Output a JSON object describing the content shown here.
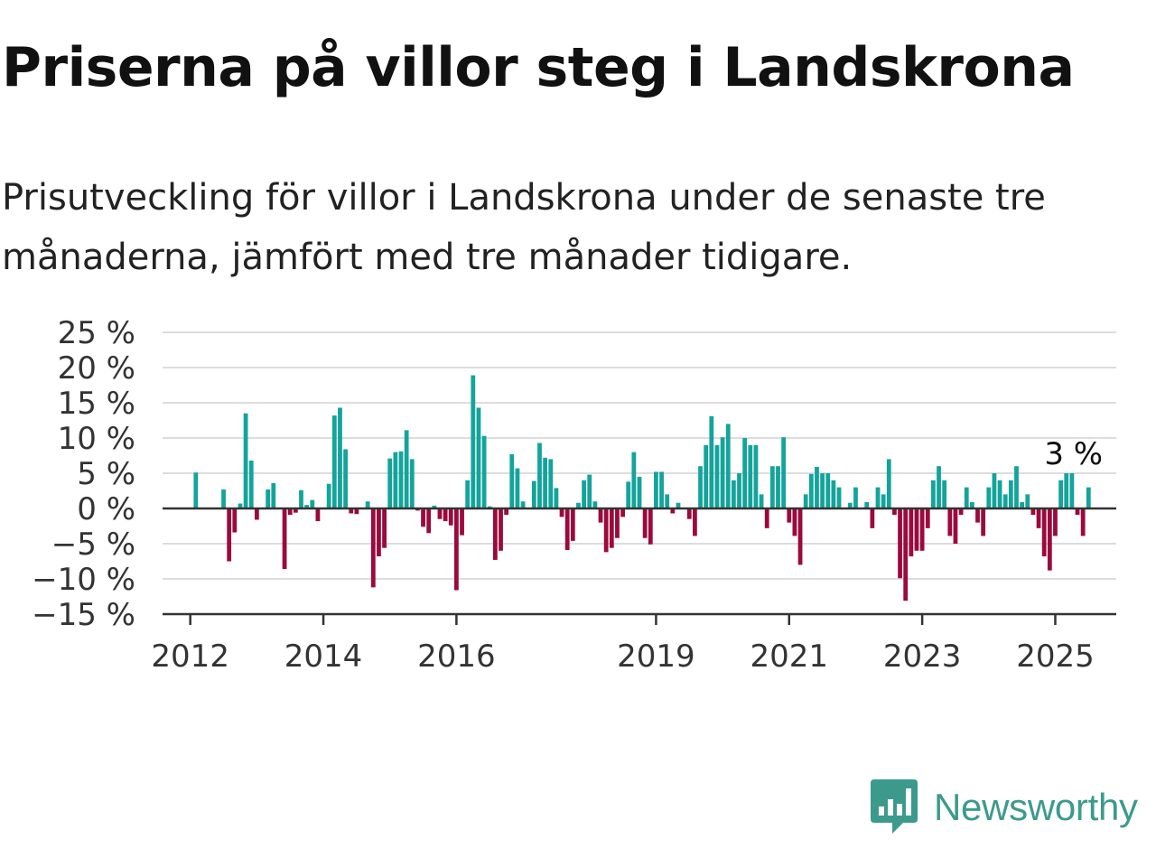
{
  "title": "Priserna på villor steg i Landskrona",
  "subtitle": "Prisutveckling för villor i Landskrona under de senaste tre månaderna, jämfört med tre månader tidigare.",
  "brand": {
    "name": "Newsworthy",
    "logo_icon": "newsworthy-logo-icon"
  },
  "colors": {
    "positive": "#13a49b",
    "negative": "#9b0a3c",
    "grid": "#dddddd",
    "axis": "#333333"
  },
  "chart_data": {
    "type": "bar",
    "title": "Priserna på villor steg i Landskrona",
    "xlabel": "",
    "ylabel": "",
    "ylim": [
      -15,
      25
    ],
    "yticks": [
      {
        "value": 25,
        "label": "25 %"
      },
      {
        "value": 20,
        "label": "20 %"
      },
      {
        "value": 15,
        "label": "15 %"
      },
      {
        "value": 10,
        "label": "10 %"
      },
      {
        "value": 5,
        "label": "5 %"
      },
      {
        "value": 0,
        "label": "0 %"
      },
      {
        "value": -5,
        "label": "−5 %"
      },
      {
        "value": -10,
        "label": "−10 %"
      },
      {
        "value": -15,
        "label": "−15 %"
      }
    ],
    "xticks": [
      {
        "value": "2012-01",
        "label": "2012"
      },
      {
        "value": "2014-01",
        "label": "2014"
      },
      {
        "value": "2016-01",
        "label": "2016"
      },
      {
        "value": "2019-01",
        "label": "2019"
      },
      {
        "value": "2021-01",
        "label": "2021"
      },
      {
        "value": "2023-01",
        "label": "2023"
      },
      {
        "value": "2025-01",
        "label": "2025"
      }
    ],
    "grid": true,
    "x_start": "2011-08",
    "x_end": "2025-12",
    "annotation": {
      "x": "2025-03",
      "y": 5,
      "label": "3 %"
    },
    "bars": [
      {
        "x": "2012-02",
        "y": 5.1
      },
      {
        "x": "2012-07",
        "y": 2.7
      },
      {
        "x": "2012-08",
        "y": -7.5
      },
      {
        "x": "2012-09",
        "y": -3.4
      },
      {
        "x": "2012-10",
        "y": 0.7
      },
      {
        "x": "2012-11",
        "y": 13.5
      },
      {
        "x": "2012-12",
        "y": 6.8
      },
      {
        "x": "2013-01",
        "y": -1.6
      },
      {
        "x": "2013-03",
        "y": 2.7
      },
      {
        "x": "2013-04",
        "y": 3.6
      },
      {
        "x": "2013-06",
        "y": -8.6
      },
      {
        "x": "2013-07",
        "y": -0.9
      },
      {
        "x": "2013-08",
        "y": -0.6
      },
      {
        "x": "2013-09",
        "y": 2.6
      },
      {
        "x": "2013-10",
        "y": 0.5
      },
      {
        "x": "2013-11",
        "y": 1.2
      },
      {
        "x": "2013-12",
        "y": -1.8
      },
      {
        "x": "2014-02",
        "y": 3.5
      },
      {
        "x": "2014-03",
        "y": 13.2
      },
      {
        "x": "2014-04",
        "y": 14.3
      },
      {
        "x": "2014-05",
        "y": 8.4
      },
      {
        "x": "2014-06",
        "y": -0.7
      },
      {
        "x": "2014-07",
        "y": -0.8
      },
      {
        "x": "2014-09",
        "y": 1.0
      },
      {
        "x": "2014-10",
        "y": -11.2
      },
      {
        "x": "2014-11",
        "y": -6.8
      },
      {
        "x": "2014-12",
        "y": -5.6
      },
      {
        "x": "2015-01",
        "y": 7.1
      },
      {
        "x": "2015-02",
        "y": 8.0
      },
      {
        "x": "2015-03",
        "y": 8.1
      },
      {
        "x": "2015-04",
        "y": 11.1
      },
      {
        "x": "2015-05",
        "y": 7.0
      },
      {
        "x": "2015-06",
        "y": -0.3
      },
      {
        "x": "2015-07",
        "y": -2.6
      },
      {
        "x": "2015-08",
        "y": -3.5
      },
      {
        "x": "2015-09",
        "y": 0.4
      },
      {
        "x": "2015-10",
        "y": -1.5
      },
      {
        "x": "2015-11",
        "y": -1.8
      },
      {
        "x": "2015-12",
        "y": -2.4
      },
      {
        "x": "2016-01",
        "y": -11.6
      },
      {
        "x": "2016-02",
        "y": -3.8
      },
      {
        "x": "2016-03",
        "y": 4.0
      },
      {
        "x": "2016-04",
        "y": 18.9
      },
      {
        "x": "2016-05",
        "y": 14.3
      },
      {
        "x": "2016-06",
        "y": 10.3
      },
      {
        "x": "2016-07",
        "y": 0.3
      },
      {
        "x": "2016-08",
        "y": -7.3
      },
      {
        "x": "2016-09",
        "y": -6.0
      },
      {
        "x": "2016-10",
        "y": -0.9
      },
      {
        "x": "2016-11",
        "y": 7.7
      },
      {
        "x": "2016-12",
        "y": 5.7
      },
      {
        "x": "2017-01",
        "y": 1.0
      },
      {
        "x": "2017-03",
        "y": 3.9
      },
      {
        "x": "2017-04",
        "y": 9.3
      },
      {
        "x": "2017-05",
        "y": 7.2
      },
      {
        "x": "2017-06",
        "y": 7.0
      },
      {
        "x": "2017-07",
        "y": 2.9
      },
      {
        "x": "2017-08",
        "y": -1.2
      },
      {
        "x": "2017-09",
        "y": -5.9
      },
      {
        "x": "2017-10",
        "y": -4.6
      },
      {
        "x": "2017-11",
        "y": 0.8
      },
      {
        "x": "2017-12",
        "y": 4.0
      },
      {
        "x": "2018-01",
        "y": 4.8
      },
      {
        "x": "2018-02",
        "y": 1.0
      },
      {
        "x": "2018-03",
        "y": -2.0
      },
      {
        "x": "2018-04",
        "y": -6.2
      },
      {
        "x": "2018-05",
        "y": -5.6
      },
      {
        "x": "2018-06",
        "y": -4.2
      },
      {
        "x": "2018-07",
        "y": -1.2
      },
      {
        "x": "2018-08",
        "y": 3.8
      },
      {
        "x": "2018-09",
        "y": 8.0
      },
      {
        "x": "2018-10",
        "y": 4.5
      },
      {
        "x": "2018-11",
        "y": -4.2
      },
      {
        "x": "2018-12",
        "y": -5.1
      },
      {
        "x": "2019-01",
        "y": 5.2
      },
      {
        "x": "2019-02",
        "y": 5.2
      },
      {
        "x": "2019-03",
        "y": 2.0
      },
      {
        "x": "2019-04",
        "y": -0.7
      },
      {
        "x": "2019-05",
        "y": 0.8
      },
      {
        "x": "2019-07",
        "y": -1.5
      },
      {
        "x": "2019-08",
        "y": -3.9
      },
      {
        "x": "2019-09",
        "y": 6.0
      },
      {
        "x": "2019-10",
        "y": 9.0
      },
      {
        "x": "2019-11",
        "y": 13.1
      },
      {
        "x": "2019-12",
        "y": 9.0
      },
      {
        "x": "2020-01",
        "y": 10.1
      },
      {
        "x": "2020-02",
        "y": 12.0
      },
      {
        "x": "2020-03",
        "y": 4.0
      },
      {
        "x": "2020-04",
        "y": 5.0
      },
      {
        "x": "2020-05",
        "y": 10.0
      },
      {
        "x": "2020-06",
        "y": 9.0
      },
      {
        "x": "2020-07",
        "y": 9.0
      },
      {
        "x": "2020-08",
        "y": 2.0
      },
      {
        "x": "2020-09",
        "y": -2.8
      },
      {
        "x": "2020-10",
        "y": 6.0
      },
      {
        "x": "2020-11",
        "y": 6.0
      },
      {
        "x": "2020-12",
        "y": 10.1
      },
      {
        "x": "2021-01",
        "y": -2.0
      },
      {
        "x": "2021-02",
        "y": -3.9
      },
      {
        "x": "2021-03",
        "y": -8.0
      },
      {
        "x": "2021-04",
        "y": 2.0
      },
      {
        "x": "2021-05",
        "y": 4.9
      },
      {
        "x": "2021-06",
        "y": 5.9
      },
      {
        "x": "2021-07",
        "y": 5.0
      },
      {
        "x": "2021-08",
        "y": 5.0
      },
      {
        "x": "2021-09",
        "y": 4.0
      },
      {
        "x": "2021-10",
        "y": 3.0
      },
      {
        "x": "2021-12",
        "y": 0.8
      },
      {
        "x": "2022-01",
        "y": 3.0
      },
      {
        "x": "2022-03",
        "y": 0.9
      },
      {
        "x": "2022-04",
        "y": -2.8
      },
      {
        "x": "2022-05",
        "y": 3.0
      },
      {
        "x": "2022-06",
        "y": 2.0
      },
      {
        "x": "2022-07",
        "y": 7.0
      },
      {
        "x": "2022-08",
        "y": -0.9
      },
      {
        "x": "2022-09",
        "y": -9.9
      },
      {
        "x": "2022-10",
        "y": -13.1
      },
      {
        "x": "2022-11",
        "y": -6.8
      },
      {
        "x": "2022-12",
        "y": -6.0
      },
      {
        "x": "2023-01",
        "y": -6.0
      },
      {
        "x": "2023-02",
        "y": -2.8
      },
      {
        "x": "2023-03",
        "y": 4.0
      },
      {
        "x": "2023-04",
        "y": 6.0
      },
      {
        "x": "2023-05",
        "y": 4.0
      },
      {
        "x": "2023-06",
        "y": -3.9
      },
      {
        "x": "2023-07",
        "y": -5.0
      },
      {
        "x": "2023-08",
        "y": -0.9
      },
      {
        "x": "2023-09",
        "y": 3.0
      },
      {
        "x": "2023-10",
        "y": 0.9
      },
      {
        "x": "2023-11",
        "y": -2.0
      },
      {
        "x": "2023-12",
        "y": -3.9
      },
      {
        "x": "2024-01",
        "y": 3.0
      },
      {
        "x": "2024-02",
        "y": 5.0
      },
      {
        "x": "2024-03",
        "y": 4.0
      },
      {
        "x": "2024-04",
        "y": 2.0
      },
      {
        "x": "2024-05",
        "y": 4.0
      },
      {
        "x": "2024-06",
        "y": 6.0
      },
      {
        "x": "2024-07",
        "y": 0.9
      },
      {
        "x": "2024-08",
        "y": 2.0
      },
      {
        "x": "2024-09",
        "y": -0.9
      },
      {
        "x": "2024-10",
        "y": -2.8
      },
      {
        "x": "2024-11",
        "y": -6.8
      },
      {
        "x": "2024-12",
        "y": -8.8
      },
      {
        "x": "2025-01",
        "y": -3.9
      },
      {
        "x": "2025-02",
        "y": 4.0
      },
      {
        "x": "2025-03",
        "y": 5.0
      },
      {
        "x": "2025-04",
        "y": 5.0
      },
      {
        "x": "2025-05",
        "y": -0.9
      },
      {
        "x": "2025-06",
        "y": -3.9
      },
      {
        "x": "2025-07",
        "y": 3.0
      }
    ]
  }
}
